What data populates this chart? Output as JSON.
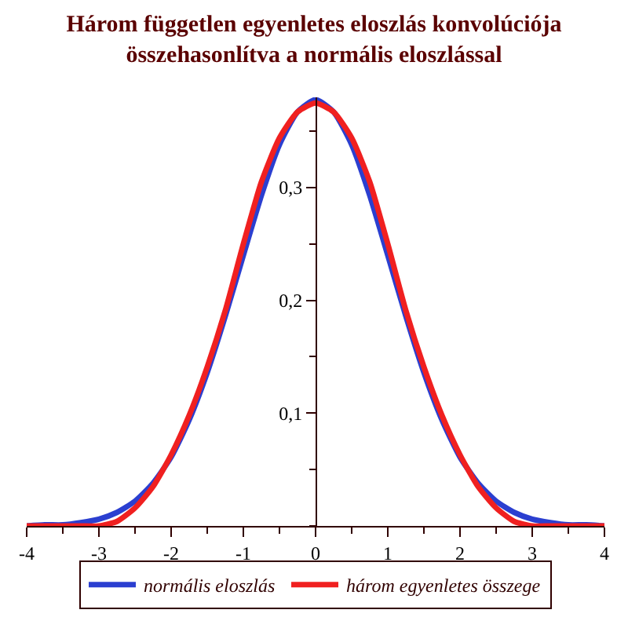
{
  "chart_data": {
    "type": "line",
    "title": "Három független egyenletes eloszlás konvolúciója\nösszehasonlítva a normális eloszlással",
    "x": [
      -4,
      -3.75,
      -3.5,
      -3.25,
      -3,
      -2.75,
      -2.5,
      -2.25,
      -2,
      -1.75,
      -1.5,
      -1.25,
      -1,
      -0.75,
      -0.5,
      -0.25,
      0,
      0.25,
      0.5,
      0.75,
      1,
      1.25,
      1.5,
      1.75,
      2,
      2.25,
      2.5,
      2.75,
      3,
      3.25,
      3.5,
      3.75,
      4
    ],
    "series": [
      {
        "name": "normális eloszlás",
        "color": "#2b3fd0",
        "values": [
          0,
          0.001,
          0.001,
          0.003,
          0.006,
          0.012,
          0.022,
          0.038,
          0.061,
          0.094,
          0.136,
          0.186,
          0.24,
          0.293,
          0.338,
          0.367,
          0.378,
          0.367,
          0.338,
          0.293,
          0.24,
          0.186,
          0.136,
          0.094,
          0.061,
          0.038,
          0.022,
          0.012,
          0.006,
          0.003,
          0.001,
          0.001,
          0
        ]
      },
      {
        "name": "három egyenletes összege",
        "color": "#f02020",
        "values": [
          0,
          0,
          0,
          0,
          0,
          0.004,
          0.016,
          0.035,
          0.063,
          0.098,
          0.141,
          0.191,
          0.25,
          0.305,
          0.344,
          0.367,
          0.375,
          0.367,
          0.344,
          0.305,
          0.25,
          0.191,
          0.141,
          0.098,
          0.063,
          0.035,
          0.016,
          0.004,
          0,
          0,
          0,
          0,
          0
        ]
      }
    ],
    "xlim": [
      -4,
      4
    ],
    "xticks": [
      -4,
      -3,
      -2,
      -1,
      0,
      1,
      2,
      3,
      4
    ],
    "ylim": [
      0,
      0.38
    ],
    "yticks": [
      {
        "value": 0.1,
        "label": "0,1"
      },
      {
        "value": 0.2,
        "label": "0,2"
      },
      {
        "value": 0.3,
        "label": "0,3"
      }
    ],
    "legend": "bottom",
    "marker": "none",
    "line_style": "solid"
  }
}
